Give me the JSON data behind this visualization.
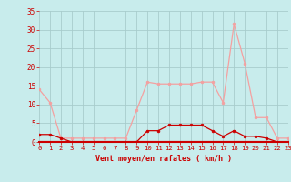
{
  "title": "",
  "xlabel": "Vent moyen/en rafales ( km/h )",
  "x_values": [
    0,
    1,
    2,
    3,
    4,
    5,
    6,
    7,
    8,
    9,
    10,
    11,
    12,
    13,
    14,
    15,
    16,
    17,
    18,
    19,
    20,
    21,
    22,
    23
  ],
  "y_rafales": [
    14,
    10.5,
    1,
    1,
    1,
    1,
    1,
    1,
    1,
    8.5,
    16,
    15.5,
    15.5,
    15.5,
    15.5,
    16,
    16,
    10.5,
    31.5,
    21,
    6.5,
    6.5,
    1,
    1
  ],
  "y_moyen": [
    2,
    2,
    1,
    0,
    0,
    0,
    0,
    0,
    0,
    0,
    3,
    3,
    4.5,
    4.5,
    4.5,
    4.5,
    3,
    1.5,
    3,
    1.5,
    1.5,
    1,
    0,
    0
  ],
  "ylim": [
    0,
    35
  ],
  "xlim": [
    0,
    23
  ],
  "yticks": [
    0,
    5,
    10,
    15,
    20,
    25,
    30,
    35
  ],
  "xticks": [
    0,
    1,
    2,
    3,
    4,
    5,
    6,
    7,
    8,
    9,
    10,
    11,
    12,
    13,
    14,
    15,
    16,
    17,
    18,
    19,
    20,
    21,
    22,
    23
  ],
  "color_rafales": "#f4a0a0",
  "color_moyen": "#cc0000",
  "bg_color": "#c8ecec",
  "grid_color": "#a8cccc",
  "tick_label_color": "#cc0000",
  "xlabel_color": "#cc0000",
  "bottom_line_color": "#cc0000"
}
